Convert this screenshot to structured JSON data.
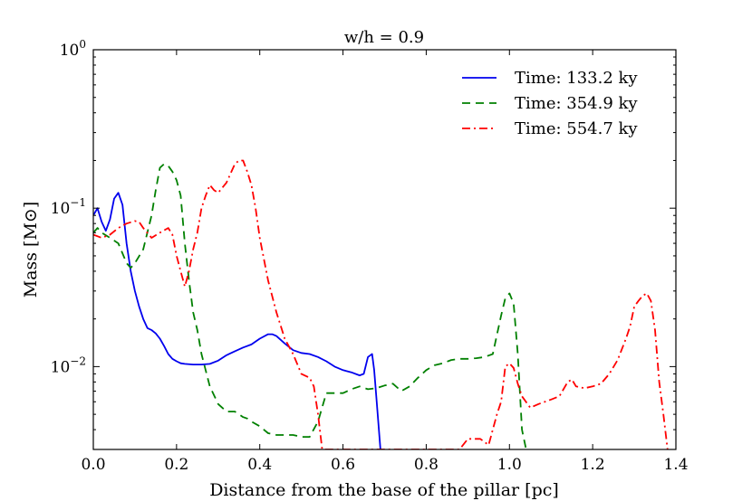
{
  "chart_data": {
    "type": "line",
    "title": "w/h = 0.9",
    "xlabel": "Distance from the base of the pillar [pc]",
    "ylabel": "Mass [M⊙]",
    "xlim": [
      0.0,
      1.4
    ],
    "ylim": [
      0.003,
      1.0
    ],
    "yscale": "log",
    "legend_position": "top-right",
    "x_ticks": [
      {
        "value": 0.0,
        "label": "0.0"
      },
      {
        "value": 0.2,
        "label": "0.2"
      },
      {
        "value": 0.4,
        "label": "0.4"
      },
      {
        "value": 0.6,
        "label": "0.6"
      },
      {
        "value": 0.8,
        "label": "0.8"
      },
      {
        "value": 1.0,
        "label": "1.0"
      },
      {
        "value": 1.2,
        "label": "1.2"
      },
      {
        "value": 1.4,
        "label": "1.4"
      }
    ],
    "y_ticks": [
      {
        "value": 0.01,
        "base": "10",
        "exp": "−2"
      },
      {
        "value": 0.1,
        "base": "10",
        "exp": "−1"
      },
      {
        "value": 1.0,
        "base": "10",
        "exp": "0"
      }
    ],
    "series": [
      {
        "name": "Time: 133.2 ky",
        "color": "#0000ee",
        "style": "solid",
        "x": [
          0.0,
          0.01,
          0.02,
          0.03,
          0.04,
          0.05,
          0.06,
          0.07,
          0.08,
          0.09,
          0.1,
          0.11,
          0.12,
          0.13,
          0.14,
          0.15,
          0.16,
          0.17,
          0.18,
          0.19,
          0.2,
          0.21,
          0.22,
          0.24,
          0.26,
          0.28,
          0.3,
          0.32,
          0.34,
          0.36,
          0.38,
          0.4,
          0.42,
          0.43,
          0.44,
          0.46,
          0.48,
          0.5,
          0.52,
          0.54,
          0.56,
          0.58,
          0.6,
          0.62,
          0.64,
          0.65,
          0.66,
          0.67,
          0.675,
          0.68,
          0.69
        ],
        "y": [
          0.09,
          0.1,
          0.082,
          0.072,
          0.085,
          0.115,
          0.125,
          0.105,
          0.06,
          0.04,
          0.03,
          0.024,
          0.02,
          0.0175,
          0.017,
          0.0162,
          0.015,
          0.0135,
          0.012,
          0.0112,
          0.0108,
          0.0105,
          0.0104,
          0.0103,
          0.0103,
          0.0104,
          0.0109,
          0.0118,
          0.0125,
          0.0132,
          0.0138,
          0.015,
          0.016,
          0.016,
          0.0156,
          0.014,
          0.0127,
          0.0122,
          0.012,
          0.0115,
          0.0108,
          0.01,
          0.0095,
          0.0092,
          0.0088,
          0.009,
          0.0115,
          0.012,
          0.0095,
          0.0065,
          0.003
        ]
      },
      {
        "name": "Time: 354.9 ky",
        "color": "#008000",
        "style": "dashed",
        "x": [
          0.0,
          0.01,
          0.02,
          0.04,
          0.06,
          0.08,
          0.09,
          0.1,
          0.12,
          0.14,
          0.15,
          0.16,
          0.17,
          0.18,
          0.19,
          0.2,
          0.21,
          0.22,
          0.23,
          0.24,
          0.25,
          0.26,
          0.28,
          0.3,
          0.32,
          0.34,
          0.36,
          0.37,
          0.38,
          0.4,
          0.42,
          0.44,
          0.46,
          0.48,
          0.5,
          0.52,
          0.54,
          0.56,
          0.58,
          0.6,
          0.62,
          0.64,
          0.66,
          0.68,
          0.7,
          0.72,
          0.74,
          0.76,
          0.78,
          0.8,
          0.82,
          0.84,
          0.86,
          0.88,
          0.9,
          0.92,
          0.94,
          0.96,
          0.98,
          0.99,
          1.0,
          1.01,
          1.02,
          1.03,
          1.04
        ],
        "y": [
          0.07,
          0.075,
          0.07,
          0.065,
          0.06,
          0.045,
          0.042,
          0.045,
          0.055,
          0.09,
          0.13,
          0.18,
          0.19,
          0.185,
          0.17,
          0.15,
          0.12,
          0.06,
          0.035,
          0.022,
          0.017,
          0.012,
          0.0075,
          0.0058,
          0.0052,
          0.0052,
          0.0048,
          0.0047,
          0.0045,
          0.0042,
          0.0038,
          0.0037,
          0.0037,
          0.0037,
          0.0036,
          0.0036,
          0.0045,
          0.0068,
          0.0068,
          0.0068,
          0.0072,
          0.0075,
          0.0072,
          0.0073,
          0.0076,
          0.0078,
          0.007,
          0.0075,
          0.0085,
          0.0095,
          0.0102,
          0.0105,
          0.011,
          0.0112,
          0.0112,
          0.0113,
          0.0115,
          0.012,
          0.021,
          0.027,
          0.029,
          0.025,
          0.012,
          0.004,
          0.003
        ]
      },
      {
        "name": "Time: 554.7 ky",
        "color": "#ff0000",
        "style": "dashdot",
        "x": [
          0.0,
          0.02,
          0.04,
          0.06,
          0.08,
          0.1,
          0.11,
          0.12,
          0.14,
          0.16,
          0.18,
          0.19,
          0.2,
          0.21,
          0.22,
          0.23,
          0.24,
          0.25,
          0.26,
          0.27,
          0.28,
          0.29,
          0.3,
          0.32,
          0.34,
          0.35,
          0.36,
          0.37,
          0.38,
          0.39,
          0.4,
          0.42,
          0.44,
          0.46,
          0.48,
          0.5,
          0.52,
          0.53,
          0.54,
          0.55,
          0.88,
          0.9,
          0.93,
          0.95,
          0.96,
          0.97,
          0.98,
          0.99,
          1.0,
          1.01,
          1.02,
          1.03,
          1.05,
          1.07,
          1.1,
          1.12,
          1.14,
          1.15,
          1.16,
          1.18,
          1.2,
          1.22,
          1.24,
          1.26,
          1.28,
          1.29,
          1.3,
          1.31,
          1.32,
          1.33,
          1.34,
          1.35,
          1.36,
          1.37,
          1.38
        ],
        "y": [
          0.068,
          0.065,
          0.068,
          0.075,
          0.08,
          0.083,
          0.082,
          0.075,
          0.065,
          0.07,
          0.075,
          0.068,
          0.05,
          0.04,
          0.032,
          0.04,
          0.055,
          0.07,
          0.1,
          0.12,
          0.14,
          0.13,
          0.125,
          0.145,
          0.19,
          0.2,
          0.2,
          0.17,
          0.14,
          0.1,
          0.065,
          0.035,
          0.022,
          0.015,
          0.012,
          0.009,
          0.0085,
          0.0075,
          0.005,
          0.003,
          0.003,
          0.0035,
          0.0035,
          0.0032,
          0.004,
          0.005,
          0.006,
          0.01,
          0.0105,
          0.0098,
          0.0078,
          0.0065,
          0.0055,
          0.0058,
          0.0062,
          0.0065,
          0.008,
          0.0083,
          0.0075,
          0.0073,
          0.0075,
          0.0078,
          0.009,
          0.011,
          0.015,
          0.018,
          0.024,
          0.026,
          0.028,
          0.029,
          0.026,
          0.017,
          0.008,
          0.005,
          0.003
        ]
      }
    ]
  }
}
